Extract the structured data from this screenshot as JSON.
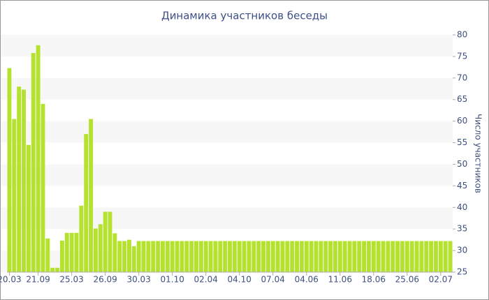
{
  "chart_data": {
    "type": "bar",
    "title": "Динамика участников беседы",
    "y_axis_label": "Число участников",
    "categories": [
      "20.03",
      null,
      null,
      null,
      null,
      null,
      "21.09",
      null,
      null,
      null,
      null,
      null,
      null,
      "25.03",
      null,
      null,
      null,
      null,
      null,
      null,
      "26.09",
      null,
      null,
      null,
      null,
      null,
      null,
      "30.03",
      null,
      null,
      null,
      null,
      null,
      null,
      "01.10",
      null,
      null,
      null,
      null,
      null,
      null,
      "02.04",
      null,
      null,
      null,
      null,
      null,
      null,
      "04.10",
      null,
      null,
      null,
      null,
      null,
      null,
      "07.04",
      null,
      null,
      null,
      null,
      null,
      null,
      "04.06",
      null,
      null,
      null,
      null,
      null,
      null,
      "11.06",
      null,
      null,
      null,
      null,
      null,
      null,
      "18.06",
      null,
      null,
      null,
      null,
      null,
      null,
      "25.06",
      null,
      null,
      null,
      null,
      null,
      null,
      "02.07",
      null,
      null
    ],
    "values": [
      72.3,
      60.5,
      68,
      67.3,
      54.5,
      75.8,
      77.6,
      64,
      32.8,
      26,
      26,
      32.3,
      34.1,
      34.1,
      34.1,
      40.4,
      57,
      60.5,
      35.1,
      36.1,
      39,
      39,
      34,
      32.2,
      32.2,
      32.5,
      31,
      32.2,
      32.2,
      32.2,
      32.2,
      32.2,
      32.2,
      32.2,
      32.2,
      32.2,
      32.2,
      32.2,
      32.2,
      32.2,
      32.2,
      32.2,
      32.2,
      32.2,
      32.2,
      32.2,
      32.2,
      32.2,
      32.2,
      32.2,
      32.2,
      32.2,
      32.2,
      32.2,
      32.2,
      32.2,
      32.2,
      32.2,
      32.2,
      32.2,
      32.2,
      32.2,
      32.2,
      32.2,
      32.2,
      32.2,
      32.2,
      32.2,
      32.2,
      32.2,
      32.2,
      32.2,
      32.2,
      32.2,
      32.2,
      32.2,
      32.2,
      32.2,
      32.2,
      32.2,
      32.2,
      32.2,
      32.2,
      32.2,
      32.2,
      32.2,
      32.2,
      32.2,
      32.2,
      32.2,
      32.2,
      32.2,
      32.2
    ],
    "color": "#b5e22e",
    "ylim": [
      25,
      80
    ],
    "yticks": [
      25,
      30,
      35,
      40,
      45,
      50,
      55,
      60,
      65,
      70,
      75,
      80
    ],
    "grid": true,
    "y_axis_side": "right"
  }
}
